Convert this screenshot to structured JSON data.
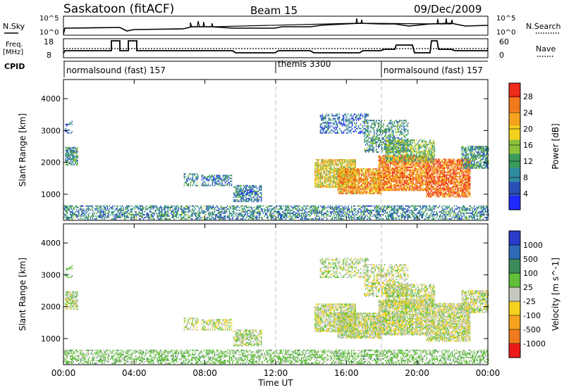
{
  "header": {
    "station": "Saskatoon (fitACF)",
    "beam": "Beam 15",
    "date": "09/Dec/2009"
  },
  "panels": {
    "nsky_label": "N.Sky",
    "nsky_ticks": [
      "10^5",
      "10^0"
    ],
    "nsearch_label": "N.Search",
    "nsearch_ticks": [
      "10^5",
      "10^0"
    ],
    "freq_label": "Freq.",
    "freq_unit": "[MHz]",
    "freq_ticks": [
      "18",
      "8"
    ],
    "nave_label": "Nave",
    "nave_ticks": [
      "60",
      "0"
    ],
    "cpid_label": "CPID",
    "cpid_segments": [
      {
        "name": "normalsound (fast)",
        "id": "157",
        "start_h": 0,
        "end_h": 12
      },
      {
        "name": "themis",
        "id": "3300",
        "start_h": 12,
        "end_h": 18
      },
      {
        "name": "normalsound (fast)",
        "id": "157",
        "start_h": 18,
        "end_h": 24
      }
    ]
  },
  "axes": {
    "ylabel": "Slant Range [km]",
    "xlabel": "Time UT",
    "xticks": [
      "00:00",
      "04:00",
      "08:00",
      "12:00",
      "16:00",
      "20:00",
      "00:00"
    ],
    "yticks": [
      "1000",
      "2000",
      "3000",
      "4000"
    ]
  },
  "power_colorbar": {
    "label": "Power [dB]",
    "ticks": [
      "4",
      "8",
      "12",
      "16",
      "20",
      "24",
      "28"
    ],
    "colors": [
      "#1e28ff",
      "#2a50b8",
      "#2f8aa0",
      "#3a9a5a",
      "#8cc23c",
      "#f2d21e",
      "#f5a21e",
      "#f07a1e",
      "#ee2a1a"
    ]
  },
  "velocity_colorbar": {
    "label": "Velocity [m s^-1]",
    "ticks": [
      "1000",
      "500",
      "100",
      "25",
      "-25",
      "-100",
      "-500",
      "-1000"
    ],
    "colors": [
      "#2a3cc8",
      "#2e6ab8",
      "#3a8a5a",
      "#60c03a",
      "#c8c8c0",
      "#f5d21e",
      "#f5a21e",
      "#f07a1e",
      "#ee1a1a"
    ]
  },
  "chart_data": {
    "type": "heatmap",
    "title": "Saskatoon (fitACF)",
    "subtitle": "Beam 15",
    "xlabel": "Time UT",
    "ylabel": "Slant Range [km]",
    "xlim": [
      0,
      24
    ],
    "ylim": [
      180,
      4600
    ],
    "grid": false,
    "dashed_lines_h": [
      12,
      18
    ],
    "series": [
      {
        "name": "Power [dB]",
        "zlim": [
          0,
          30
        ]
      },
      {
        "name": "Velocity [m s^-1]",
        "zlim": [
          -1000,
          1000
        ]
      }
    ],
    "regions": [
      {
        "t0": 0.0,
        "t1": 24.0,
        "r0": 200,
        "r1": 650,
        "power_db": 9,
        "velocity": 50,
        "density": 0.55
      },
      {
        "t0": 0.1,
        "t1": 0.8,
        "r0": 1900,
        "r1": 2450,
        "power_db": 10,
        "velocity": 10,
        "density": 0.75
      },
      {
        "t0": 0.1,
        "t1": 0.5,
        "r0": 2900,
        "r1": 3300,
        "power_db": 6,
        "velocity": 50,
        "density": 0.3
      },
      {
        "t0": 6.8,
        "t1": 7.6,
        "r0": 1250,
        "r1": 1650,
        "power_db": 10,
        "velocity": 0,
        "density": 0.5
      },
      {
        "t0": 7.8,
        "t1": 9.5,
        "r0": 1250,
        "r1": 1600,
        "power_db": 8,
        "velocity": 0,
        "density": 0.6
      },
      {
        "t0": 9.6,
        "t1": 11.2,
        "r0": 750,
        "r1": 1250,
        "power_db": 8,
        "velocity": 10,
        "density": 0.6
      },
      {
        "t0": 14.2,
        "t1": 16.5,
        "r0": 1200,
        "r1": 2100,
        "power_db": 18,
        "velocity": 0,
        "density": 0.8
      },
      {
        "t0": 15.5,
        "t1": 18.0,
        "r0": 1000,
        "r1": 1800,
        "power_db": 22,
        "velocity": 0,
        "density": 0.85
      },
      {
        "t0": 17.8,
        "t1": 20.5,
        "r0": 1100,
        "r1": 2200,
        "power_db": 24,
        "velocity": 0,
        "density": 0.85
      },
      {
        "t0": 20.5,
        "t1": 23.0,
        "r0": 900,
        "r1": 2100,
        "power_db": 25,
        "velocity": 0,
        "density": 0.85
      },
      {
        "t0": 22.5,
        "t1": 24.0,
        "r0": 1800,
        "r1": 2500,
        "power_db": 10,
        "velocity": 0,
        "density": 0.7
      },
      {
        "t0": 14.5,
        "t1": 17.2,
        "r0": 2900,
        "r1": 3500,
        "power_db": 7,
        "velocity": 10,
        "density": 0.45
      },
      {
        "t0": 17.0,
        "t1": 19.5,
        "r0": 2300,
        "r1": 3300,
        "power_db": 10,
        "velocity": 0,
        "density": 0.55
      },
      {
        "t0": 18.2,
        "t1": 21.0,
        "r0": 2000,
        "r1": 2700,
        "power_db": 14,
        "velocity": 0,
        "density": 0.6
      }
    ]
  }
}
